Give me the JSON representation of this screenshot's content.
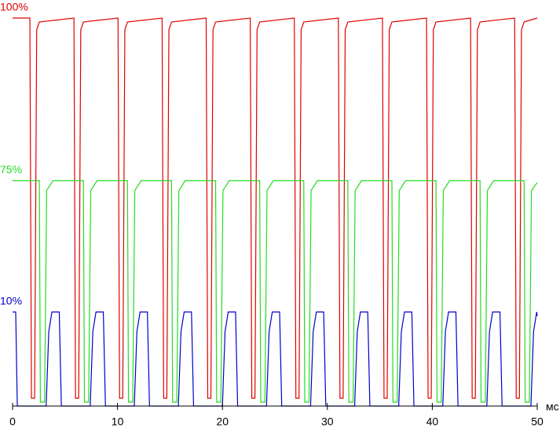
{
  "chart_data": {
    "type": "line",
    "x_label": "мс",
    "xlim": [
      0,
      50
    ],
    "xticks": [
      0,
      10,
      20,
      30,
      40,
      50
    ],
    "ylim": [
      0,
      100
    ],
    "series": [
      {
        "name": "100%",
        "color": "#e00000",
        "x": [
          0,
          1.65,
          1.8,
          2.1,
          2.3,
          2.55,
          5.85,
          6,
          6.3,
          6.5,
          6.75,
          10.05,
          10.2,
          10.5,
          10.7,
          10.95,
          14.25,
          14.4,
          14.7,
          14.9,
          15.15,
          18.45,
          18.6,
          18.9,
          19.1,
          19.35,
          22.65,
          22.8,
          23.1,
          23.3,
          23.55,
          26.85,
          27,
          27.3,
          27.5,
          27.75,
          31.05,
          31.2,
          31.5,
          31.7,
          31.95,
          35.25,
          35.4,
          35.7,
          35.9,
          36.15,
          39.45,
          39.6,
          39.9,
          40.1,
          40.35,
          43.65,
          43.8,
          44.1,
          44.3,
          44.55,
          47.85,
          48,
          48.3,
          48.5,
          48.75,
          50
        ],
        "values": [
          99,
          99,
          2,
          2,
          96,
          98,
          99,
          2,
          2,
          96,
          98,
          99,
          2,
          2,
          96,
          98,
          99,
          2,
          2,
          96,
          98,
          99,
          2,
          2,
          96,
          98,
          99,
          2,
          2,
          96,
          98,
          99,
          2,
          2,
          96,
          98,
          99,
          2,
          2,
          96,
          98,
          99,
          2,
          2,
          96,
          98,
          99,
          2,
          2,
          96,
          98,
          99,
          2,
          2,
          96,
          98,
          99,
          2,
          2,
          96,
          98,
          99
        ]
      },
      {
        "name": "75%",
        "color": "#22dd22",
        "x": [
          0,
          2.55,
          2.65,
          3.05,
          3.25,
          3.85,
          6.75,
          6.85,
          7.25,
          7.45,
          8.05,
          10.95,
          11.05,
          11.45,
          11.65,
          12.25,
          15.15,
          15.25,
          15.65,
          15.85,
          16.45,
          19.35,
          19.45,
          19.85,
          20.05,
          20.65,
          23.55,
          23.65,
          24.05,
          24.25,
          24.85,
          27.75,
          27.85,
          28.25,
          28.45,
          29.05,
          31.95,
          32.05,
          32.45,
          32.65,
          33.25,
          36.15,
          36.25,
          36.65,
          36.85,
          37.45,
          40.35,
          40.45,
          40.85,
          41.05,
          41.65,
          44.55,
          44.65,
          45.05,
          45.25,
          45.85,
          48.75,
          48.85,
          49.25,
          49.45,
          50
        ],
        "values": [
          57.5,
          57.5,
          1,
          1,
          55,
          57.5,
          57.5,
          1,
          1,
          55,
          57.5,
          57.5,
          1,
          1,
          55,
          57.5,
          57.5,
          1,
          1,
          55,
          57.5,
          57.5,
          1,
          1,
          55,
          57.5,
          57.5,
          1,
          1,
          55,
          57.5,
          57.5,
          1,
          1,
          55,
          57.5,
          57.5,
          1,
          1,
          55,
          57.5,
          57.5,
          1,
          1,
          55,
          57.5,
          57.5,
          1,
          1,
          55,
          57.5,
          57.5,
          1,
          1,
          55,
          57.5,
          57.5,
          1,
          1,
          55,
          57
        ]
      },
      {
        "name": "10%",
        "color": "#0000cc",
        "x": [
          0,
          0.3,
          0.45,
          3.2,
          3.45,
          3.75,
          4.45,
          4.65,
          7.4,
          7.65,
          7.95,
          8.65,
          8.85,
          11.6,
          11.85,
          12.15,
          12.85,
          13.05,
          15.8,
          16.05,
          16.35,
          17.05,
          17.25,
          20,
          20.25,
          20.55,
          21.25,
          21.45,
          24.2,
          24.45,
          24.75,
          25.45,
          25.65,
          28.4,
          28.65,
          28.95,
          29.65,
          29.85,
          32.6,
          32.85,
          33.15,
          33.85,
          34.05,
          36.8,
          37.05,
          37.35,
          38.05,
          38.25,
          41,
          41.25,
          41.55,
          42.25,
          42.45,
          45.2,
          45.45,
          45.75,
          46.45,
          46.65,
          49.4,
          49.65,
          49.95,
          50
        ],
        "values": [
          24,
          24,
          0,
          0,
          19,
          24,
          24,
          0,
          0,
          19,
          24,
          24,
          0,
          0,
          19,
          24,
          24,
          0,
          0,
          19,
          24,
          24,
          0,
          0,
          19,
          24,
          24,
          0,
          0,
          19,
          24,
          24,
          0,
          0,
          19,
          24,
          24,
          0,
          0,
          19,
          24,
          24,
          0,
          0,
          19,
          24,
          24,
          0,
          0,
          19,
          24,
          24,
          0,
          0,
          19,
          24,
          24,
          0,
          0,
          19,
          24,
          23
        ]
      }
    ]
  }
}
